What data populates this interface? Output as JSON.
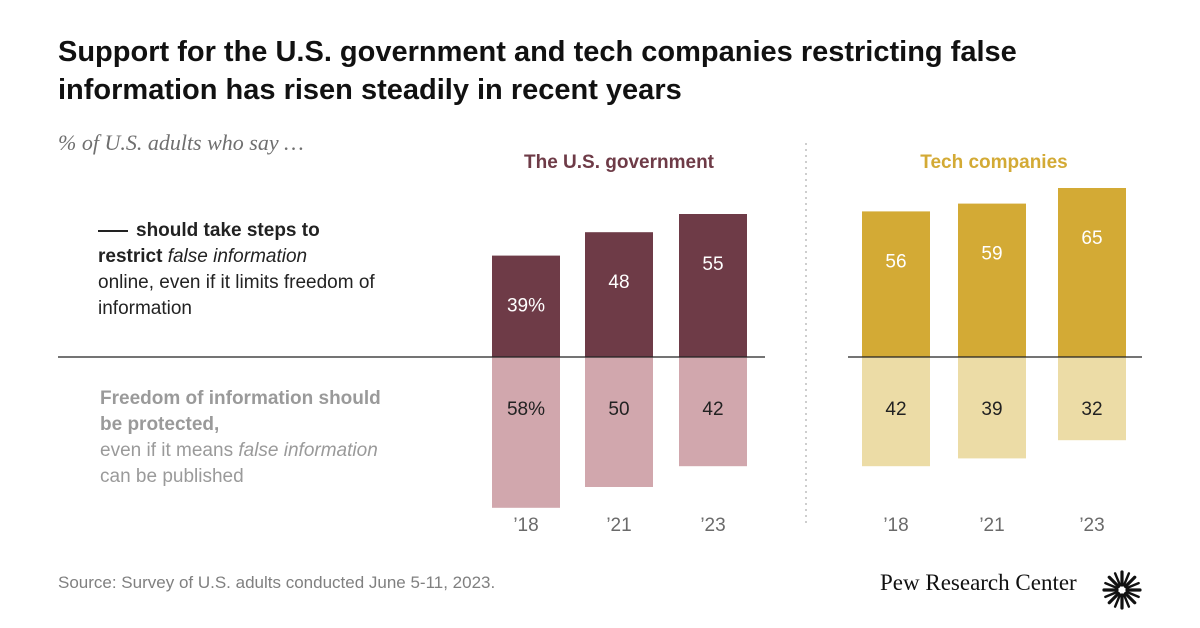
{
  "title": "Support for the U.S. government and tech companies restricting false information has risen steadily in recent years",
  "subtitle": "% of U.S. adults who say …",
  "labels": {
    "restrict_prefix": "should take steps to",
    "restrict_bold": "restrict",
    "restrict_italic": "false information",
    "restrict_rest": "online, even if it limits freedom of information",
    "protect_bold": "Freedom of information should be protected,",
    "protect_pre": "even if it means",
    "protect_italic": "false information",
    "protect_post": "can be published"
  },
  "colors": {
    "gov_dark": "#6e3b47",
    "gov_light": "#d1a7ad",
    "tech_dark": "#d3aa35",
    "tech_light": "#ecdca6"
  },
  "chart_data": [
    {
      "type": "bar",
      "title": "The U.S. government",
      "categories": [
        "’18",
        "’21",
        "’23"
      ],
      "series": [
        {
          "values": [
            39,
            48,
            55
          ],
          "labels": [
            "39%",
            "48",
            "55"
          ]
        },
        {
          "values": [
            58,
            50,
            42
          ],
          "labels": [
            "58%",
            "50",
            "42"
          ]
        }
      ]
    },
    {
      "type": "bar",
      "title": "Tech companies",
      "categories": [
        "’18",
        "’21",
        "’23"
      ],
      "series": [
        {
          "values": [
            56,
            59,
            65
          ],
          "labels": [
            "56",
            "59",
            "65"
          ]
        },
        {
          "values": [
            42,
            39,
            32
          ],
          "labels": [
            "42",
            "39",
            "32"
          ]
        }
      ]
    }
  ],
  "source": "Source: Survey of U.S. adults conducted June 5-11, 2023.",
  "logo": "Pew Research Center"
}
